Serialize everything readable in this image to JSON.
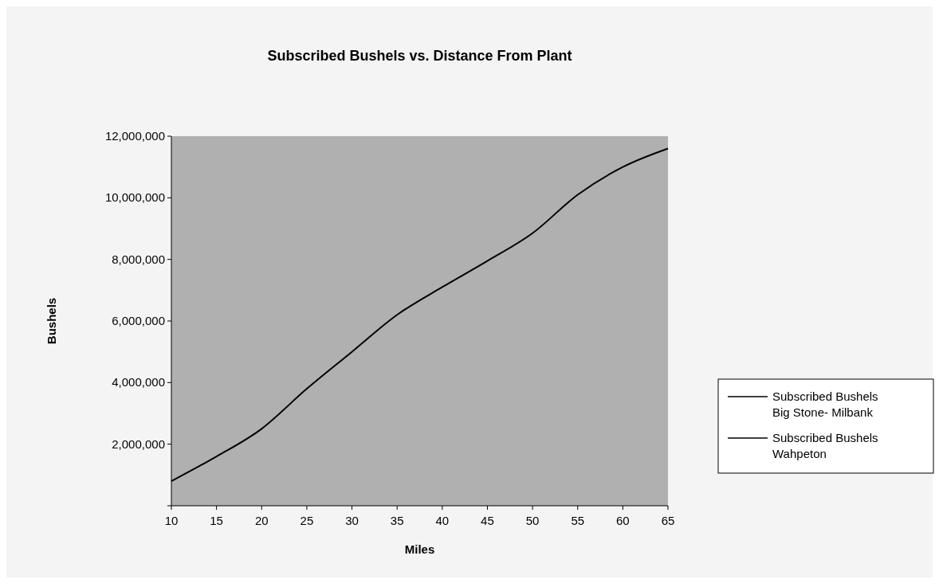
{
  "chart_data": {
    "type": "line",
    "title": "Subscribed Bushels vs. Distance From Plant",
    "xlabel": "Miles",
    "ylabel": "Bushels",
    "x": [
      10,
      15,
      20,
      25,
      30,
      35,
      40,
      45,
      50,
      55,
      60,
      65
    ],
    "series": [
      {
        "name": "Subscribed Bushels Big Stone- Milbank",
        "color": "#000000",
        "values": [
          800000,
          1600000,
          2500000,
          3800000,
          5000000,
          6200000,
          7100000,
          7950000,
          8850000,
          10100000,
          11000000,
          11600000
        ]
      },
      {
        "name": "Subscribed Bushels Wahpeton",
        "color": "#000000",
        "values": [
          null,
          null,
          null,
          null,
          null,
          null,
          null,
          null,
          null,
          null,
          null,
          null
        ]
      }
    ],
    "xlim": [
      10,
      65
    ],
    "xticks": [
      10,
      15,
      20,
      25,
      30,
      35,
      40,
      45,
      50,
      55,
      60,
      65
    ],
    "ylim": [
      0,
      12000000
    ],
    "yticks": [
      {
        "value": 0,
        "label": null
      },
      {
        "value": 2000000,
        "label": "2,000,000"
      },
      {
        "value": 4000000,
        "label": "4,000,000"
      },
      {
        "value": 6000000,
        "label": "6,000,000"
      },
      {
        "value": 8000000,
        "label": "8,000,000"
      },
      {
        "value": 10000000,
        "label": "10,000,000"
      },
      {
        "value": 12000000,
        "label": "12,000,000"
      }
    ],
    "grid": false,
    "legend": "right",
    "marker": "none",
    "line_style": "solid"
  }
}
